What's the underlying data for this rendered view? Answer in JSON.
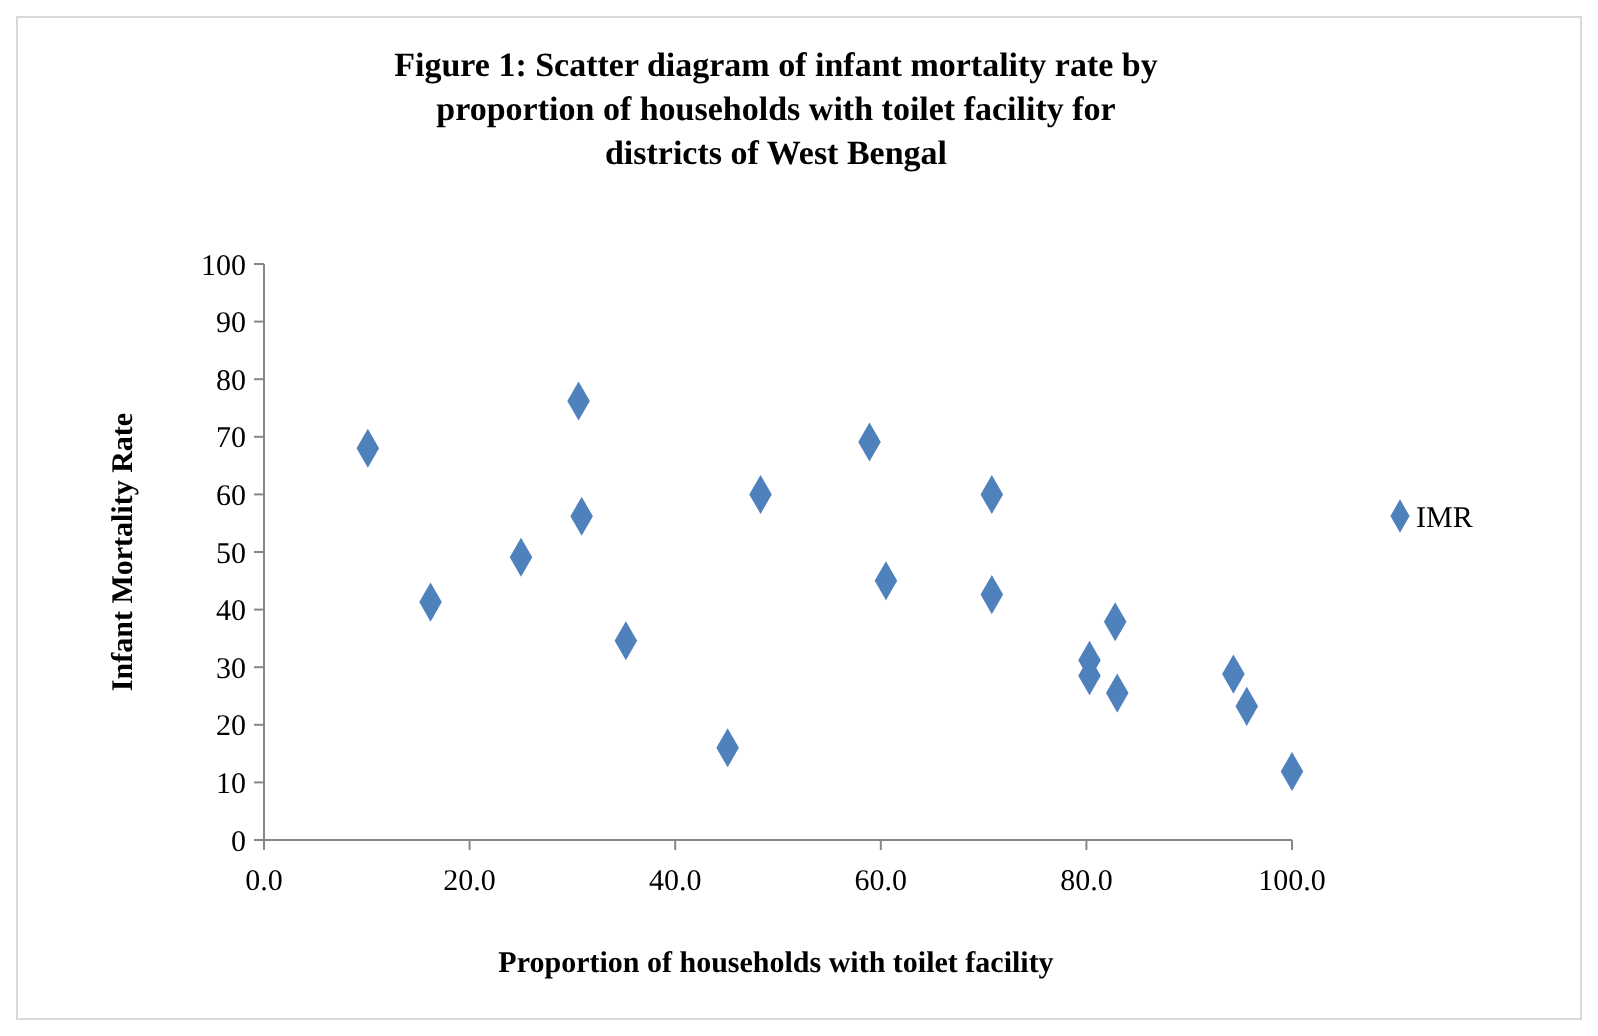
{
  "chart_data": {
    "type": "scatter",
    "title": "Figure 1: Scatter diagram of infant mortality rate by proportion of households with toilet facility for districts of West Bengal",
    "xlabel": "Proportion of households with toilet facility",
    "ylabel": "Infant Mortality Rate",
    "series": [
      {
        "name": "IMR",
        "color": "#4f81bd",
        "x": [
          10.1,
          16.2,
          25.0,
          30.6,
          30.9,
          35.2,
          45.1,
          48.3,
          58.9,
          60.5,
          70.8,
          70.8,
          82.8,
          80.3,
          80.3,
          83.0,
          94.3,
          95.6,
          100.0
        ],
        "values": [
          68.0,
          41.3,
          49.1,
          76.2,
          56.2,
          34.6,
          16.0,
          60.0,
          69.1,
          45.0,
          60.0,
          42.6,
          37.9,
          31.2,
          28.5,
          25.5,
          28.8,
          23.2,
          11.9
        ]
      }
    ],
    "xlim": [
      0,
      100
    ],
    "xticks": [
      {
        "value": 0,
        "label": "0.0"
      },
      {
        "value": 20,
        "label": "20.0"
      },
      {
        "value": 40,
        "label": "40.0"
      },
      {
        "value": 60,
        "label": "60.0"
      },
      {
        "value": 80,
        "label": "80.0"
      },
      {
        "value": 100,
        "label": "100.0"
      }
    ],
    "ylim": [
      0,
      100
    ],
    "yticks": [
      0,
      10,
      20,
      30,
      40,
      50,
      60,
      70,
      80,
      90,
      100
    ],
    "grid": false,
    "legend": "right",
    "marker": "diamond"
  }
}
